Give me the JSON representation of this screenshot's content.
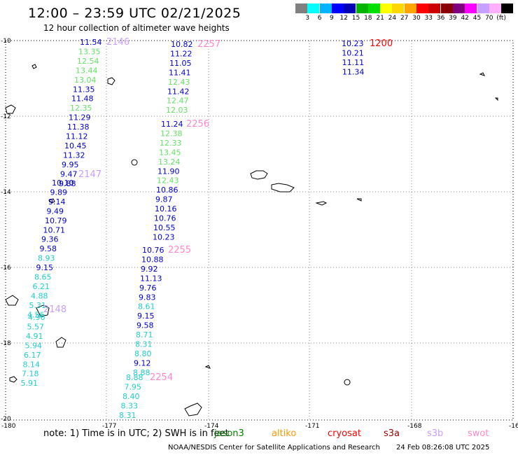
{
  "title": "12:00 – 23:59 UTC 02/21/2025",
  "subtitle": "12 hour collection of altimeter wave heights",
  "legend": {
    "labels": [
      "",
      "3",
      "6",
      "9",
      "12",
      "15",
      "18",
      "21",
      "24",
      "27",
      "30",
      "33",
      "36",
      "39",
      "42",
      "45",
      "70",
      "(ft)"
    ],
    "colors": [
      "#808080",
      "#00ffff",
      "#00b4ff",
      "#0000ff",
      "#0000b4",
      "#00b400",
      "#00e000",
      "#ffff00",
      "#ffd700",
      "#ffa500",
      "#ff0000",
      "#cc0000",
      "#8b0000",
      "#800080",
      "#ff00ff",
      "#c8a0ff",
      "#ffb0ff",
      "#000000"
    ]
  },
  "axes": {
    "lon_labels": [
      "-180",
      "-177",
      "-174",
      "-171",
      "-168",
      "-16"
    ],
    "lat_labels": [
      "-10",
      "-12",
      "-14",
      "-16",
      "-18",
      "-20"
    ]
  },
  "colors": {
    "c1": "#0000cc",
    "c2": "#66e066",
    "c3": "#22cccc"
  },
  "tracks": [
    {
      "time": "2146",
      "time_color": "#c8a0ff",
      "points": [
        {
          "v": "11.54",
          "c": "c1"
        },
        {
          "v": "13.35",
          "c": "c2"
        },
        {
          "v": "12.54",
          "c": "c2"
        },
        {
          "v": "13.44",
          "c": "c2"
        },
        {
          "v": "13.04",
          "c": "c2"
        },
        {
          "v": "11.35",
          "c": "c1"
        },
        {
          "v": "11.48",
          "c": "c1"
        },
        {
          "v": "12.35",
          "c": "c2"
        },
        {
          "v": "11.29",
          "c": "c1"
        },
        {
          "v": "11.38",
          "c": "c1"
        },
        {
          "v": "11.12",
          "c": "c1"
        },
        {
          "v": "10.45",
          "c": "c1"
        },
        {
          "v": "11.32",
          "c": "c1"
        },
        {
          "v": "9.95",
          "c": "c1"
        },
        {
          "v": "9.47",
          "c": "c1"
        },
        {
          "v": "9.88",
          "c": "c1"
        }
      ]
    },
    {
      "time": "2147",
      "time_color": "#c8a0ff",
      "points": [
        {
          "v": "10.10",
          "c": "c1"
        },
        {
          "v": "9.89",
          "c": "c1"
        },
        {
          "v": "9.14",
          "c": "c1"
        },
        {
          "v": "9.49",
          "c": "c1"
        },
        {
          "v": "10.79",
          "c": "c1"
        },
        {
          "v": "10.71",
          "c": "c1"
        },
        {
          "v": "9.36",
          "c": "c1"
        },
        {
          "v": "9.58",
          "c": "c1"
        },
        {
          "v": "8.93",
          "c": "c3"
        },
        {
          "v": "9.15",
          "c": "c1"
        },
        {
          "v": "8.65",
          "c": "c3"
        },
        {
          "v": "6.21",
          "c": "c3"
        },
        {
          "v": "4.88",
          "c": "c3"
        },
        {
          "v": "5.31",
          "c": "c3"
        },
        {
          "v": "4.56",
          "c": "c3"
        }
      ]
    },
    {
      "time": "2148",
      "time_color": "#c8a0ff",
      "points": [
        {
          "v": "4.96",
          "c": "c3"
        },
        {
          "v": "5.57",
          "c": "c3"
        },
        {
          "v": "4.91",
          "c": "c3"
        },
        {
          "v": "5.94",
          "c": "c3"
        },
        {
          "v": "6.17",
          "c": "c3"
        },
        {
          "v": "8.14",
          "c": "c3"
        },
        {
          "v": "7.18",
          "c": "c3"
        },
        {
          "v": "5.91",
          "c": "c3"
        }
      ]
    },
    {
      "time": "2257",
      "time_color": "#ff88cc",
      "points": [
        {
          "v": "10.82",
          "c": "c1"
        },
        {
          "v": "11.22",
          "c": "c1"
        },
        {
          "v": "11.05",
          "c": "c1"
        },
        {
          "v": "11.41",
          "c": "c1"
        },
        {
          "v": "12.43",
          "c": "c2"
        },
        {
          "v": "11.42",
          "c": "c1"
        },
        {
          "v": "12.47",
          "c": "c2"
        },
        {
          "v": "12.03",
          "c": "c2"
        }
      ]
    },
    {
      "time": "2256",
      "time_color": "#ff88cc",
      "points": [
        {
          "v": "11.24",
          "c": "c1"
        },
        {
          "v": "12.38",
          "c": "c2"
        },
        {
          "v": "12.33",
          "c": "c2"
        },
        {
          "v": "13.45",
          "c": "c2"
        },
        {
          "v": "13.24",
          "c": "c2"
        },
        {
          "v": "11.90",
          "c": "c1"
        },
        {
          "v": "12.43",
          "c": "c2"
        },
        {
          "v": "10.86",
          "c": "c1"
        },
        {
          "v": "9.87",
          "c": "c1"
        },
        {
          "v": "10.16",
          "c": "c1"
        },
        {
          "v": "10.76",
          "c": "c1"
        },
        {
          "v": "10.55",
          "c": "c1"
        },
        {
          "v": "10.23",
          "c": "c1"
        }
      ]
    },
    {
      "time": "2255",
      "time_color": "#ff88cc",
      "points": [
        {
          "v": "10.76",
          "c": "c1"
        },
        {
          "v": "10.88",
          "c": "c1"
        },
        {
          "v": "9.92",
          "c": "c1"
        },
        {
          "v": "11.13",
          "c": "c1"
        },
        {
          "v": "9.76",
          "c": "c1"
        },
        {
          "v": "9.83",
          "c": "c1"
        },
        {
          "v": "8.61",
          "c": "c3"
        },
        {
          "v": "9.15",
          "c": "c1"
        },
        {
          "v": "9.58",
          "c": "c1"
        },
        {
          "v": "8.71",
          "c": "c3"
        },
        {
          "v": "8.31",
          "c": "c3"
        },
        {
          "v": "8.80",
          "c": "c3"
        },
        {
          "v": "9.12",
          "c": "c1"
        },
        {
          "v": "8.88",
          "c": "c3"
        }
      ]
    },
    {
      "time": "2254",
      "time_color": "#ff88cc",
      "points": [
        {
          "v": "8.88",
          "c": "c3"
        },
        {
          "v": "7.95",
          "c": "c3"
        },
        {
          "v": "8.40",
          "c": "c3"
        },
        {
          "v": "8.33",
          "c": "c3"
        },
        {
          "v": "8.31",
          "c": "c3"
        }
      ]
    },
    {
      "time": "1200",
      "time_color": "#ff0000",
      "points": [
        {
          "v": "10.23",
          "c": "c1"
        },
        {
          "v": "10.21",
          "c": "c1"
        },
        {
          "v": "11.11",
          "c": "c1"
        },
        {
          "v": "11.34",
          "c": "c1"
        }
      ]
    }
  ],
  "note_prefix": "note:  1) Time is in UTC; 2) SWH is in feet",
  "missions": [
    {
      "name": "jason3",
      "color": "#008000"
    },
    {
      "name": "altiko",
      "color": "#ff9900"
    },
    {
      "name": "cryosat",
      "color": "#ff0000"
    },
    {
      "name": "s3a",
      "color": "#990000"
    },
    {
      "name": "s3b",
      "color": "#c8a0ff"
    },
    {
      "name": "swot",
      "color": "#ff88cc"
    }
  ],
  "credit": "NOAA/NESDIS Center for Satellite Applications and Research",
  "generated": "24 Feb 08:26:08 UTC 2025"
}
